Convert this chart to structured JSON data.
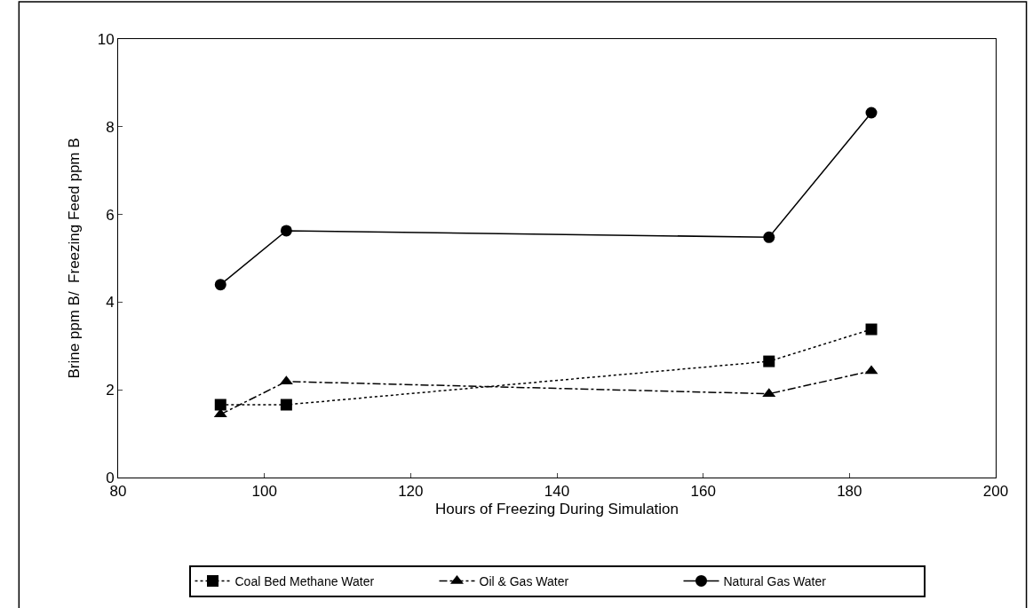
{
  "chart_data": {
    "type": "line",
    "xlabel": "Hours of Freezing During Simulation",
    "ylabel": "Brine ppm B/  Freezing Feed ppm B",
    "xlim": [
      80,
      200
    ],
    "xticks": [
      80,
      100,
      120,
      140,
      160,
      180,
      200
    ],
    "ylim": [
      0,
      10
    ],
    "yticks": [
      0,
      2,
      4,
      6,
      8,
      10
    ],
    "legend": "bottom",
    "series": [
      {
        "name": "Coal Bed Methane Water",
        "color": "#000000",
        "marker": "square",
        "line_style": "dotted",
        "x": [
          94,
          103,
          169,
          183
        ],
        "values": [
          1.66,
          1.66,
          2.65,
          3.38
        ]
      },
      {
        "name": "Oil & Gas Water",
        "color": "#000000",
        "marker": "triangle",
        "line_style": "dashed",
        "x": [
          94,
          103,
          169,
          183
        ],
        "values": [
          1.44,
          2.19,
          1.91,
          2.43
        ]
      },
      {
        "name": "Natural Gas Water",
        "color": "#000000",
        "marker": "circle",
        "line_style": "solid",
        "x": [
          94,
          103,
          169,
          183
        ],
        "values": [
          4.4,
          5.63,
          5.48,
          8.32
        ]
      }
    ]
  }
}
